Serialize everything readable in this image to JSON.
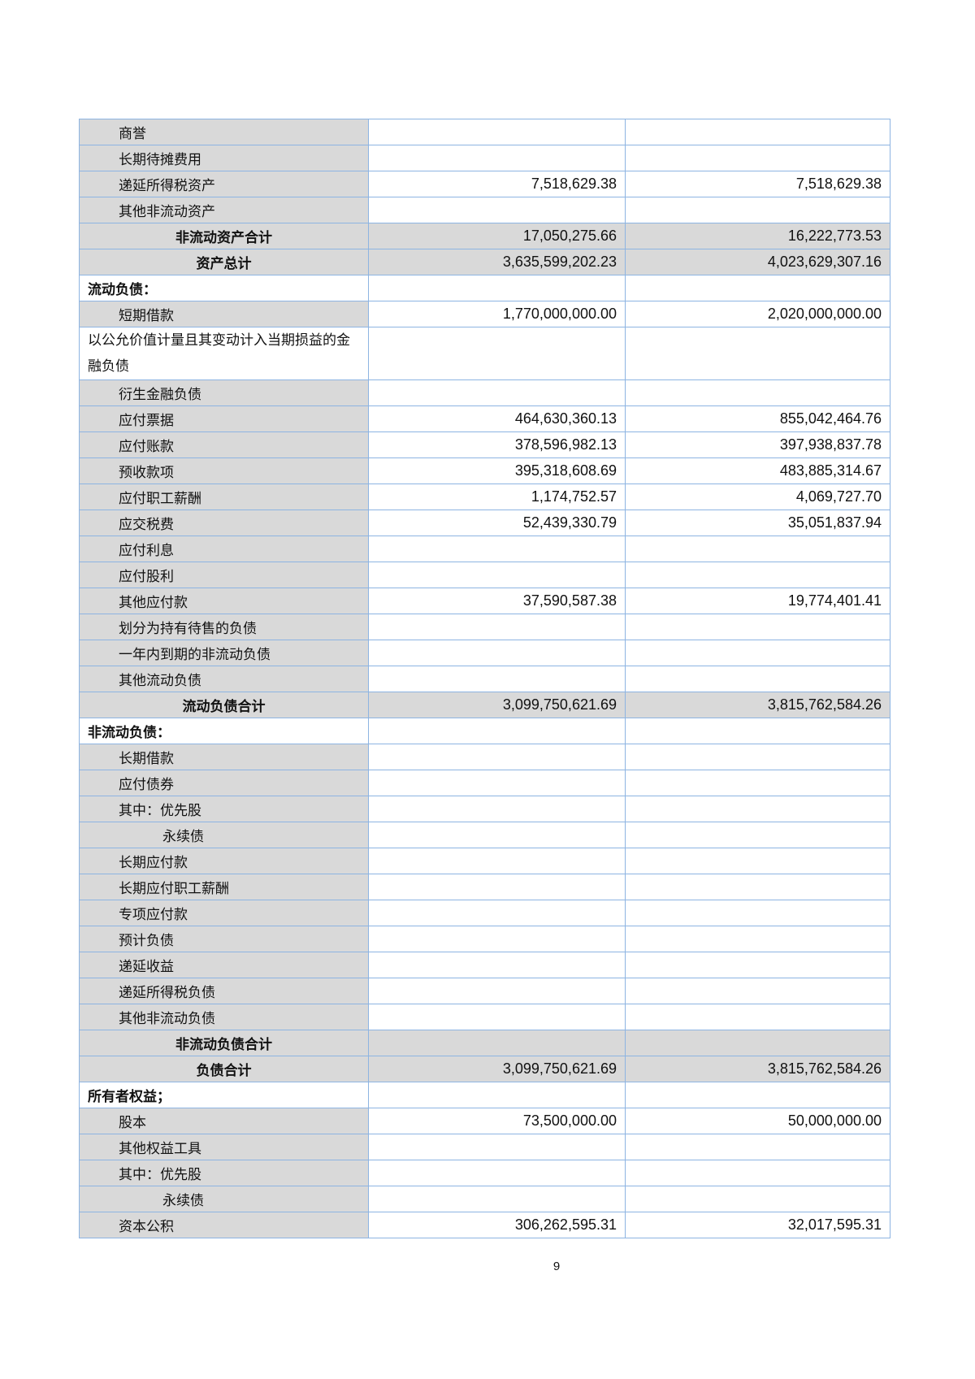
{
  "rows": [
    {
      "label": "商誉",
      "a": "",
      "b": "",
      "type": "item"
    },
    {
      "label": "长期待摊费用",
      "a": "",
      "b": "",
      "type": "item"
    },
    {
      "label": "递延所得税资产",
      "a": "7,518,629.38",
      "b": "7,518,629.38",
      "type": "item"
    },
    {
      "label": "其他非流动资产",
      "a": "",
      "b": "",
      "type": "item"
    },
    {
      "label": "非流动资产合计",
      "a": "17,050,275.66",
      "b": "16,222,773.53",
      "type": "total"
    },
    {
      "label": "资产总计",
      "a": "3,635,599,202.23",
      "b": "4,023,629,307.16",
      "type": "total"
    },
    {
      "label": "流动负债：",
      "a": "",
      "b": "",
      "type": "section"
    },
    {
      "label": "短期借款",
      "a": "1,770,000,000.00",
      "b": "2,020,000,000.00",
      "type": "item"
    },
    {
      "label": "以公允价值计量且其变动计入当期损益的金融负债",
      "a": "",
      "b": "",
      "type": "wrap"
    },
    {
      "label": "衍生金融负债",
      "a": "",
      "b": "",
      "type": "item"
    },
    {
      "label": "应付票据",
      "a": "464,630,360.13",
      "b": "855,042,464.76",
      "type": "item"
    },
    {
      "label": "应付账款",
      "a": "378,596,982.13",
      "b": "397,938,837.78",
      "type": "item"
    },
    {
      "label": "预收款项",
      "a": "395,318,608.69",
      "b": "483,885,314.67",
      "type": "item"
    },
    {
      "label": "应付职工薪酬",
      "a": "1,174,752.57",
      "b": "4,069,727.70",
      "type": "item"
    },
    {
      "label": "应交税费",
      "a": "52,439,330.79",
      "b": "35,051,837.94",
      "type": "item"
    },
    {
      "label": "应付利息",
      "a": "",
      "b": "",
      "type": "item"
    },
    {
      "label": "应付股利",
      "a": "",
      "b": "",
      "type": "item"
    },
    {
      "label": "其他应付款",
      "a": "37,590,587.38",
      "b": "19,774,401.41",
      "type": "item"
    },
    {
      "label": "划分为持有待售的负债",
      "a": "",
      "b": "",
      "type": "item"
    },
    {
      "label": "一年内到期的非流动负债",
      "a": "",
      "b": "",
      "type": "item"
    },
    {
      "label": "其他流动负债",
      "a": "",
      "b": "",
      "type": "item"
    },
    {
      "label": "流动负债合计",
      "a": "3,099,750,621.69",
      "b": "3,815,762,584.26",
      "type": "total"
    },
    {
      "label": "非流动负债：",
      "a": "",
      "b": "",
      "type": "section"
    },
    {
      "label": "长期借款",
      "a": "",
      "b": "",
      "type": "item"
    },
    {
      "label": "应付债券",
      "a": "",
      "b": "",
      "type": "item"
    },
    {
      "label": "其中：优先股",
      "a": "",
      "b": "",
      "type": "item"
    },
    {
      "label": "永续债",
      "a": "",
      "b": "",
      "type": "indent2"
    },
    {
      "label": "长期应付款",
      "a": "",
      "b": "",
      "type": "item"
    },
    {
      "label": "长期应付职工薪酬",
      "a": "",
      "b": "",
      "type": "item"
    },
    {
      "label": "专项应付款",
      "a": "",
      "b": "",
      "type": "item"
    },
    {
      "label": "预计负债",
      "a": "",
      "b": "",
      "type": "item"
    },
    {
      "label": "递延收益",
      "a": "",
      "b": "",
      "type": "item"
    },
    {
      "label": "递延所得税负债",
      "a": "",
      "b": "",
      "type": "item"
    },
    {
      "label": "其他非流动负债",
      "a": "",
      "b": "",
      "type": "item"
    },
    {
      "label": "非流动负债合计",
      "a": "",
      "b": "",
      "type": "total"
    },
    {
      "label": "负债合计",
      "a": "3,099,750,621.69",
      "b": "3,815,762,584.26",
      "type": "total"
    },
    {
      "label": "所有者权益；",
      "a": "",
      "b": "",
      "type": "section"
    },
    {
      "label": "股本",
      "a": "73,500,000.00",
      "b": "50,000,000.00",
      "type": "item"
    },
    {
      "label": "其他权益工具",
      "a": "",
      "b": "",
      "type": "item"
    },
    {
      "label": "其中：优先股",
      "a": "",
      "b": "",
      "type": "item"
    },
    {
      "label": "永续债",
      "a": "",
      "b": "",
      "type": "indent2"
    },
    {
      "label": "资本公积",
      "a": "306,262,595.31",
      "b": "32,017,595.31",
      "type": "item"
    }
  ],
  "page_number": "9",
  "colors": {
    "label_bg": "#d9d9d9",
    "border": "#8db4e2"
  }
}
